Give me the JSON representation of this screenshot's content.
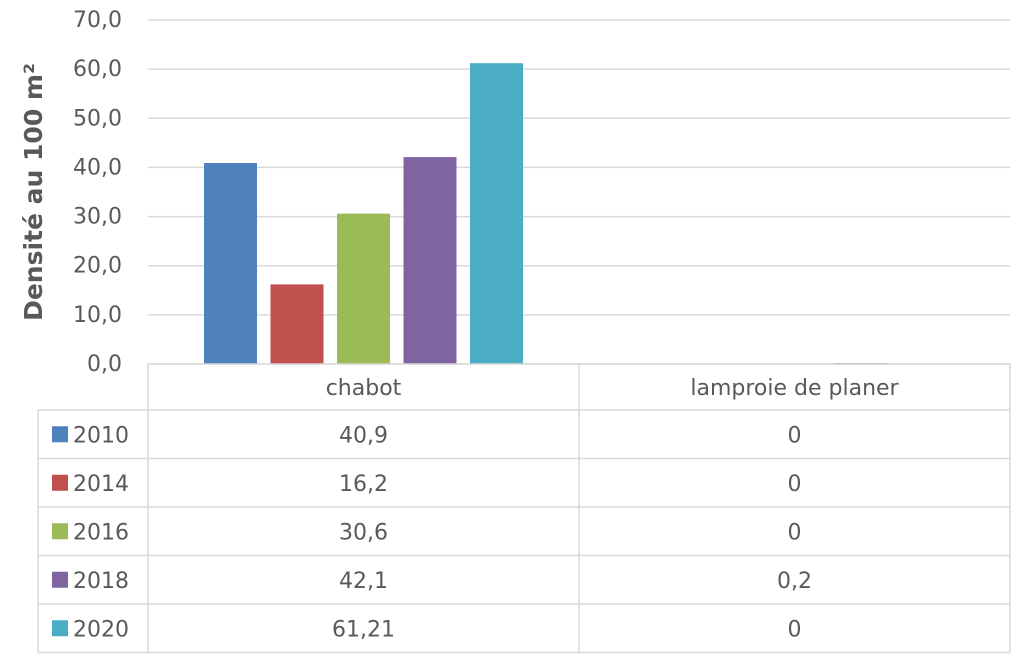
{
  "chart_data": {
    "type": "bar",
    "ylabel": "Densité au 100 m²",
    "ylim": [
      0,
      70
    ],
    "y_ticks": [
      "0,0",
      "10,0",
      "20,0",
      "30,0",
      "40,0",
      "50,0",
      "60,0",
      "70,0"
    ],
    "y_tick_values": [
      0,
      10,
      20,
      30,
      40,
      50,
      60,
      70
    ],
    "grid": true,
    "legend_placement": "data-table",
    "categories": [
      "chabot",
      "lamproie de planer"
    ],
    "series": [
      {
        "name": "2010",
        "color": "#4f81bd",
        "values": [
          40.9,
          0
        ],
        "labels": [
          "40,9",
          "0"
        ]
      },
      {
        "name": "2014",
        "color": "#c0504d",
        "values": [
          16.2,
          0
        ],
        "labels": [
          "16,2",
          "0"
        ]
      },
      {
        "name": "2016",
        "color": "#9bbb59",
        "values": [
          30.6,
          0
        ],
        "labels": [
          "30,6",
          "0"
        ]
      },
      {
        "name": "2018",
        "color": "#8064a2",
        "values": [
          42.1,
          0.2
        ],
        "labels": [
          "42,1",
          "0,2"
        ]
      },
      {
        "name": "2020",
        "color": "#4bacc6",
        "values": [
          61.21,
          0
        ],
        "labels": [
          "61,21",
          "0"
        ]
      }
    ]
  }
}
